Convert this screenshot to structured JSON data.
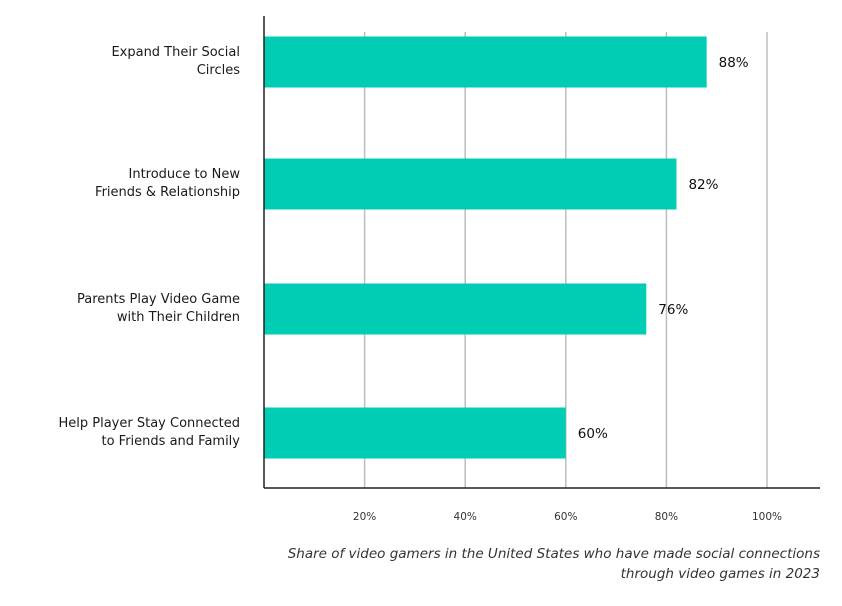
{
  "chart_data": {
    "type": "bar",
    "orientation": "horizontal",
    "categories": [
      [
        "Expand Their Social",
        "Circles"
      ],
      [
        "Introduce to New",
        "Friends & Relationship"
      ],
      [
        "Parents Play Video Game",
        "with Their Children"
      ],
      [
        "Help Player Stay Connected",
        "to Friends and Family"
      ]
    ],
    "values": [
      88,
      82,
      76,
      60
    ],
    "value_labels": [
      "88%",
      "82%",
      "76%",
      "60%"
    ],
    "x_ticks": [
      20,
      40,
      60,
      80,
      100
    ],
    "x_tick_labels": [
      "20%",
      "40%",
      "60%",
      "80%",
      "100%"
    ],
    "xlim": [
      0,
      110
    ],
    "grid": true,
    "bar_color": "#00CDB4",
    "caption": [
      "Share of video gamers in the United States who have made social connections",
      "through video games in 2023"
    ]
  }
}
